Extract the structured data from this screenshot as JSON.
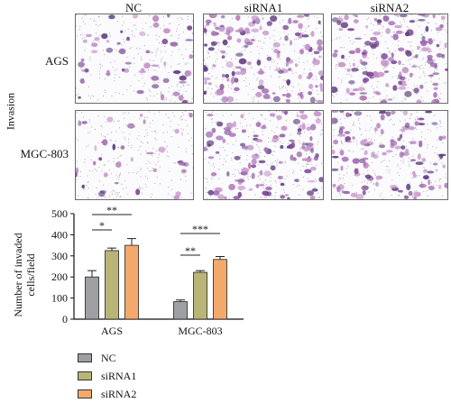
{
  "figure": {
    "columns": [
      "NC",
      "siRNA1",
      "siRNA2"
    ],
    "rows": [
      "AGS",
      "MGC-803"
    ],
    "section_label": "Invasion"
  },
  "colors": {
    "NC": "#9e9fa3",
    "siRNA1": "#b9b577",
    "siRNA2": "#f3a96c",
    "stain": "#8a4f9c",
    "frame": "#6b6b6b"
  },
  "chart_data": {
    "type": "bar",
    "categories": [
      "AGS",
      "MGC-803"
    ],
    "series": [
      {
        "name": "NC",
        "values": [
          200,
          83
        ],
        "errors": [
          30,
          8
        ]
      },
      {
        "name": "siRNA1",
        "values": [
          325,
          222
        ],
        "errors": [
          12,
          8
        ]
      },
      {
        "name": "siRNA2",
        "values": [
          350,
          283
        ],
        "errors": [
          32,
          14
        ]
      }
    ],
    "ylabel": "Number of invaded cells/field",
    "ylim": [
      0,
      500
    ],
    "yticks": [
      "0",
      "100",
      "200",
      "300",
      "400",
      "500"
    ],
    "significance": [
      {
        "group": "AGS",
        "label": "*",
        "from": "NC",
        "to": "siRNA1"
      },
      {
        "group": "AGS",
        "label": "**",
        "from": "NC",
        "to": "siRNA2"
      },
      {
        "group": "MGC-803",
        "label": "**",
        "from": "NC",
        "to": "siRNA1"
      },
      {
        "group": "MGC-803",
        "label": "***",
        "from": "NC",
        "to": "siRNA2"
      }
    ],
    "legend": [
      "NC",
      "siRNA1",
      "siRNA2"
    ],
    "legend_position": "bottom-left",
    "grid": false
  }
}
